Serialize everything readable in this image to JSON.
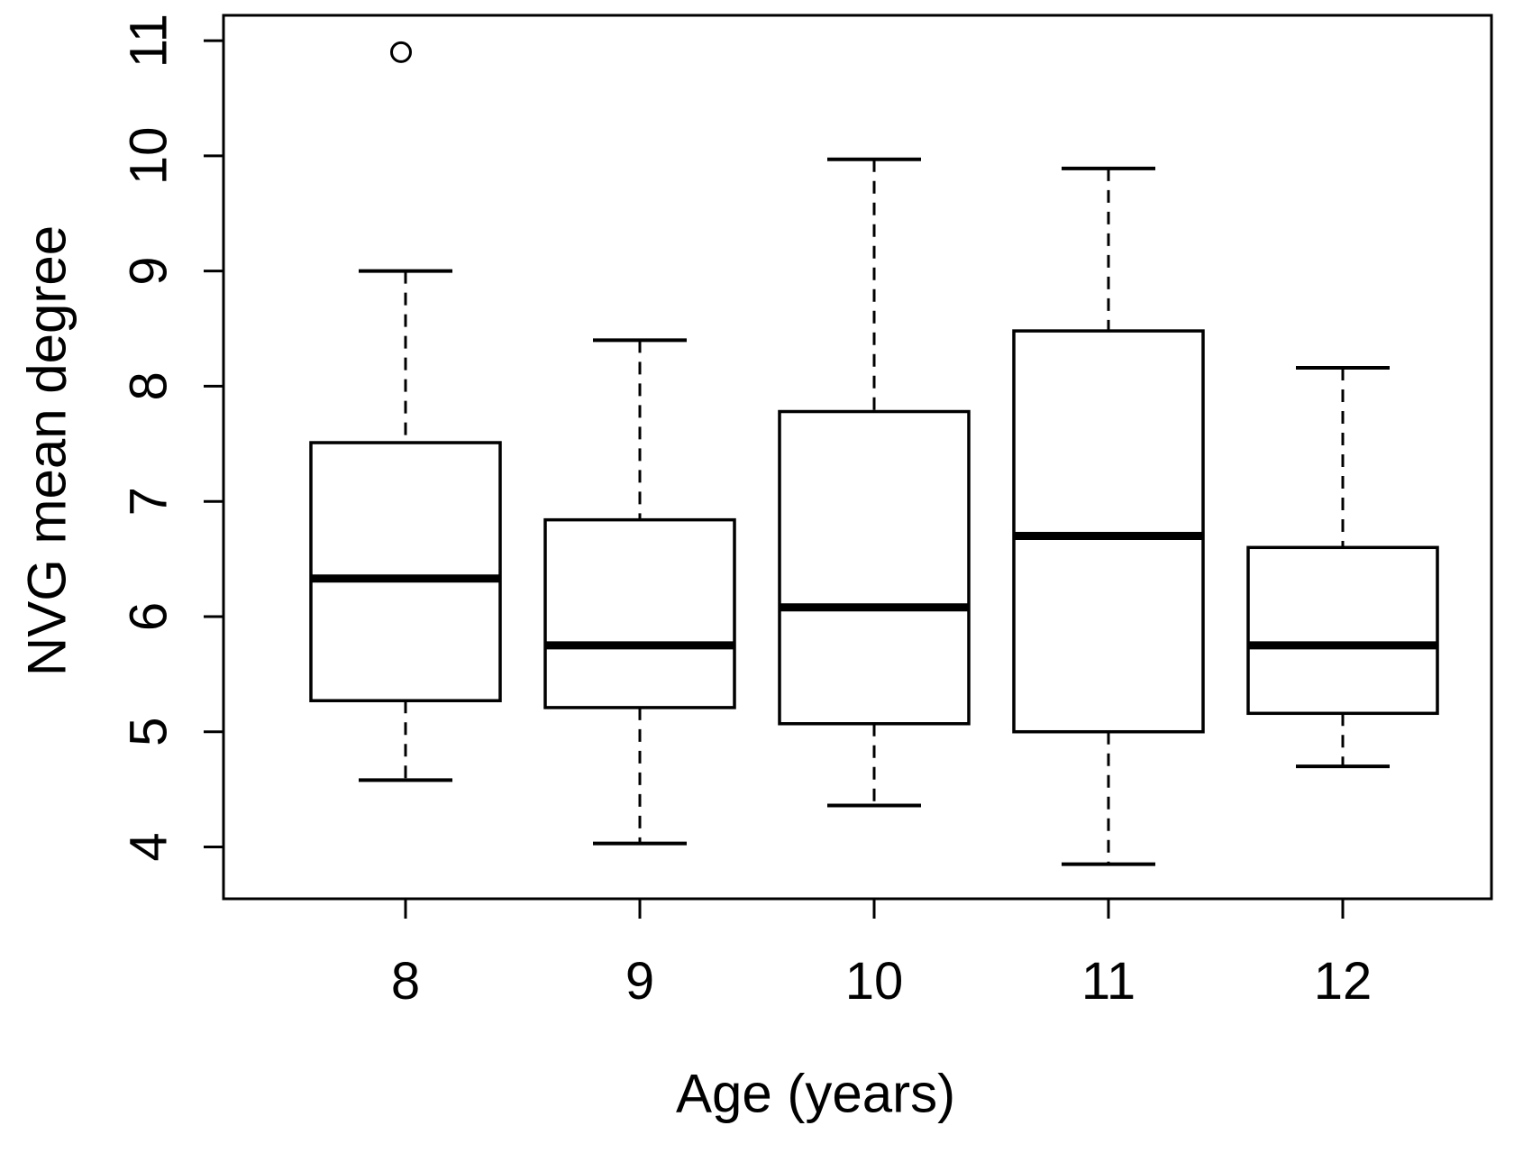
{
  "figure": {
    "background_color": "#ffffff",
    "line_color": "#000000",
    "text_color": "#000000"
  },
  "chart_data": {
    "type": "boxplot",
    "title": "",
    "xlabel": "Age (years)",
    "ylabel": "NVG mean degree",
    "categories": [
      "8",
      "9",
      "10",
      "11",
      "12"
    ],
    "x_tick_labels": [
      "8",
      "9",
      "10",
      "11",
      "12"
    ],
    "y_tick_labels": [
      "4",
      "5",
      "6",
      "7",
      "8",
      "9",
      "10",
      "11"
    ],
    "y_ticks": [
      4,
      5,
      6,
      7,
      8,
      9,
      10,
      11
    ],
    "ylim": [
      3.55,
      11.22
    ],
    "grid": false,
    "legend": "none",
    "box_style": {
      "fill": "#ffffff",
      "stroke": "#000000",
      "whisker_dashed": true,
      "outlier_marker": "open-circle"
    },
    "series": [
      {
        "category": "8",
        "whisker_low": 4.58,
        "q1": 5.27,
        "median": 6.33,
        "q3": 7.51,
        "whisker_high": 9.0,
        "outliers": [
          10.9
        ]
      },
      {
        "category": "9",
        "whisker_low": 4.03,
        "q1": 5.21,
        "median": 5.75,
        "q3": 6.84,
        "whisker_high": 8.4,
        "outliers": []
      },
      {
        "category": "10",
        "whisker_low": 4.36,
        "q1": 5.07,
        "median": 6.08,
        "q3": 7.78,
        "whisker_high": 9.97,
        "outliers": []
      },
      {
        "category": "11",
        "whisker_low": 3.85,
        "q1": 5.0,
        "median": 6.7,
        "q3": 8.48,
        "whisker_high": 9.89,
        "outliers": []
      },
      {
        "category": "12",
        "whisker_low": 4.7,
        "q1": 5.16,
        "median": 5.75,
        "q3": 6.6,
        "whisker_high": 8.16,
        "outliers": []
      }
    ]
  }
}
